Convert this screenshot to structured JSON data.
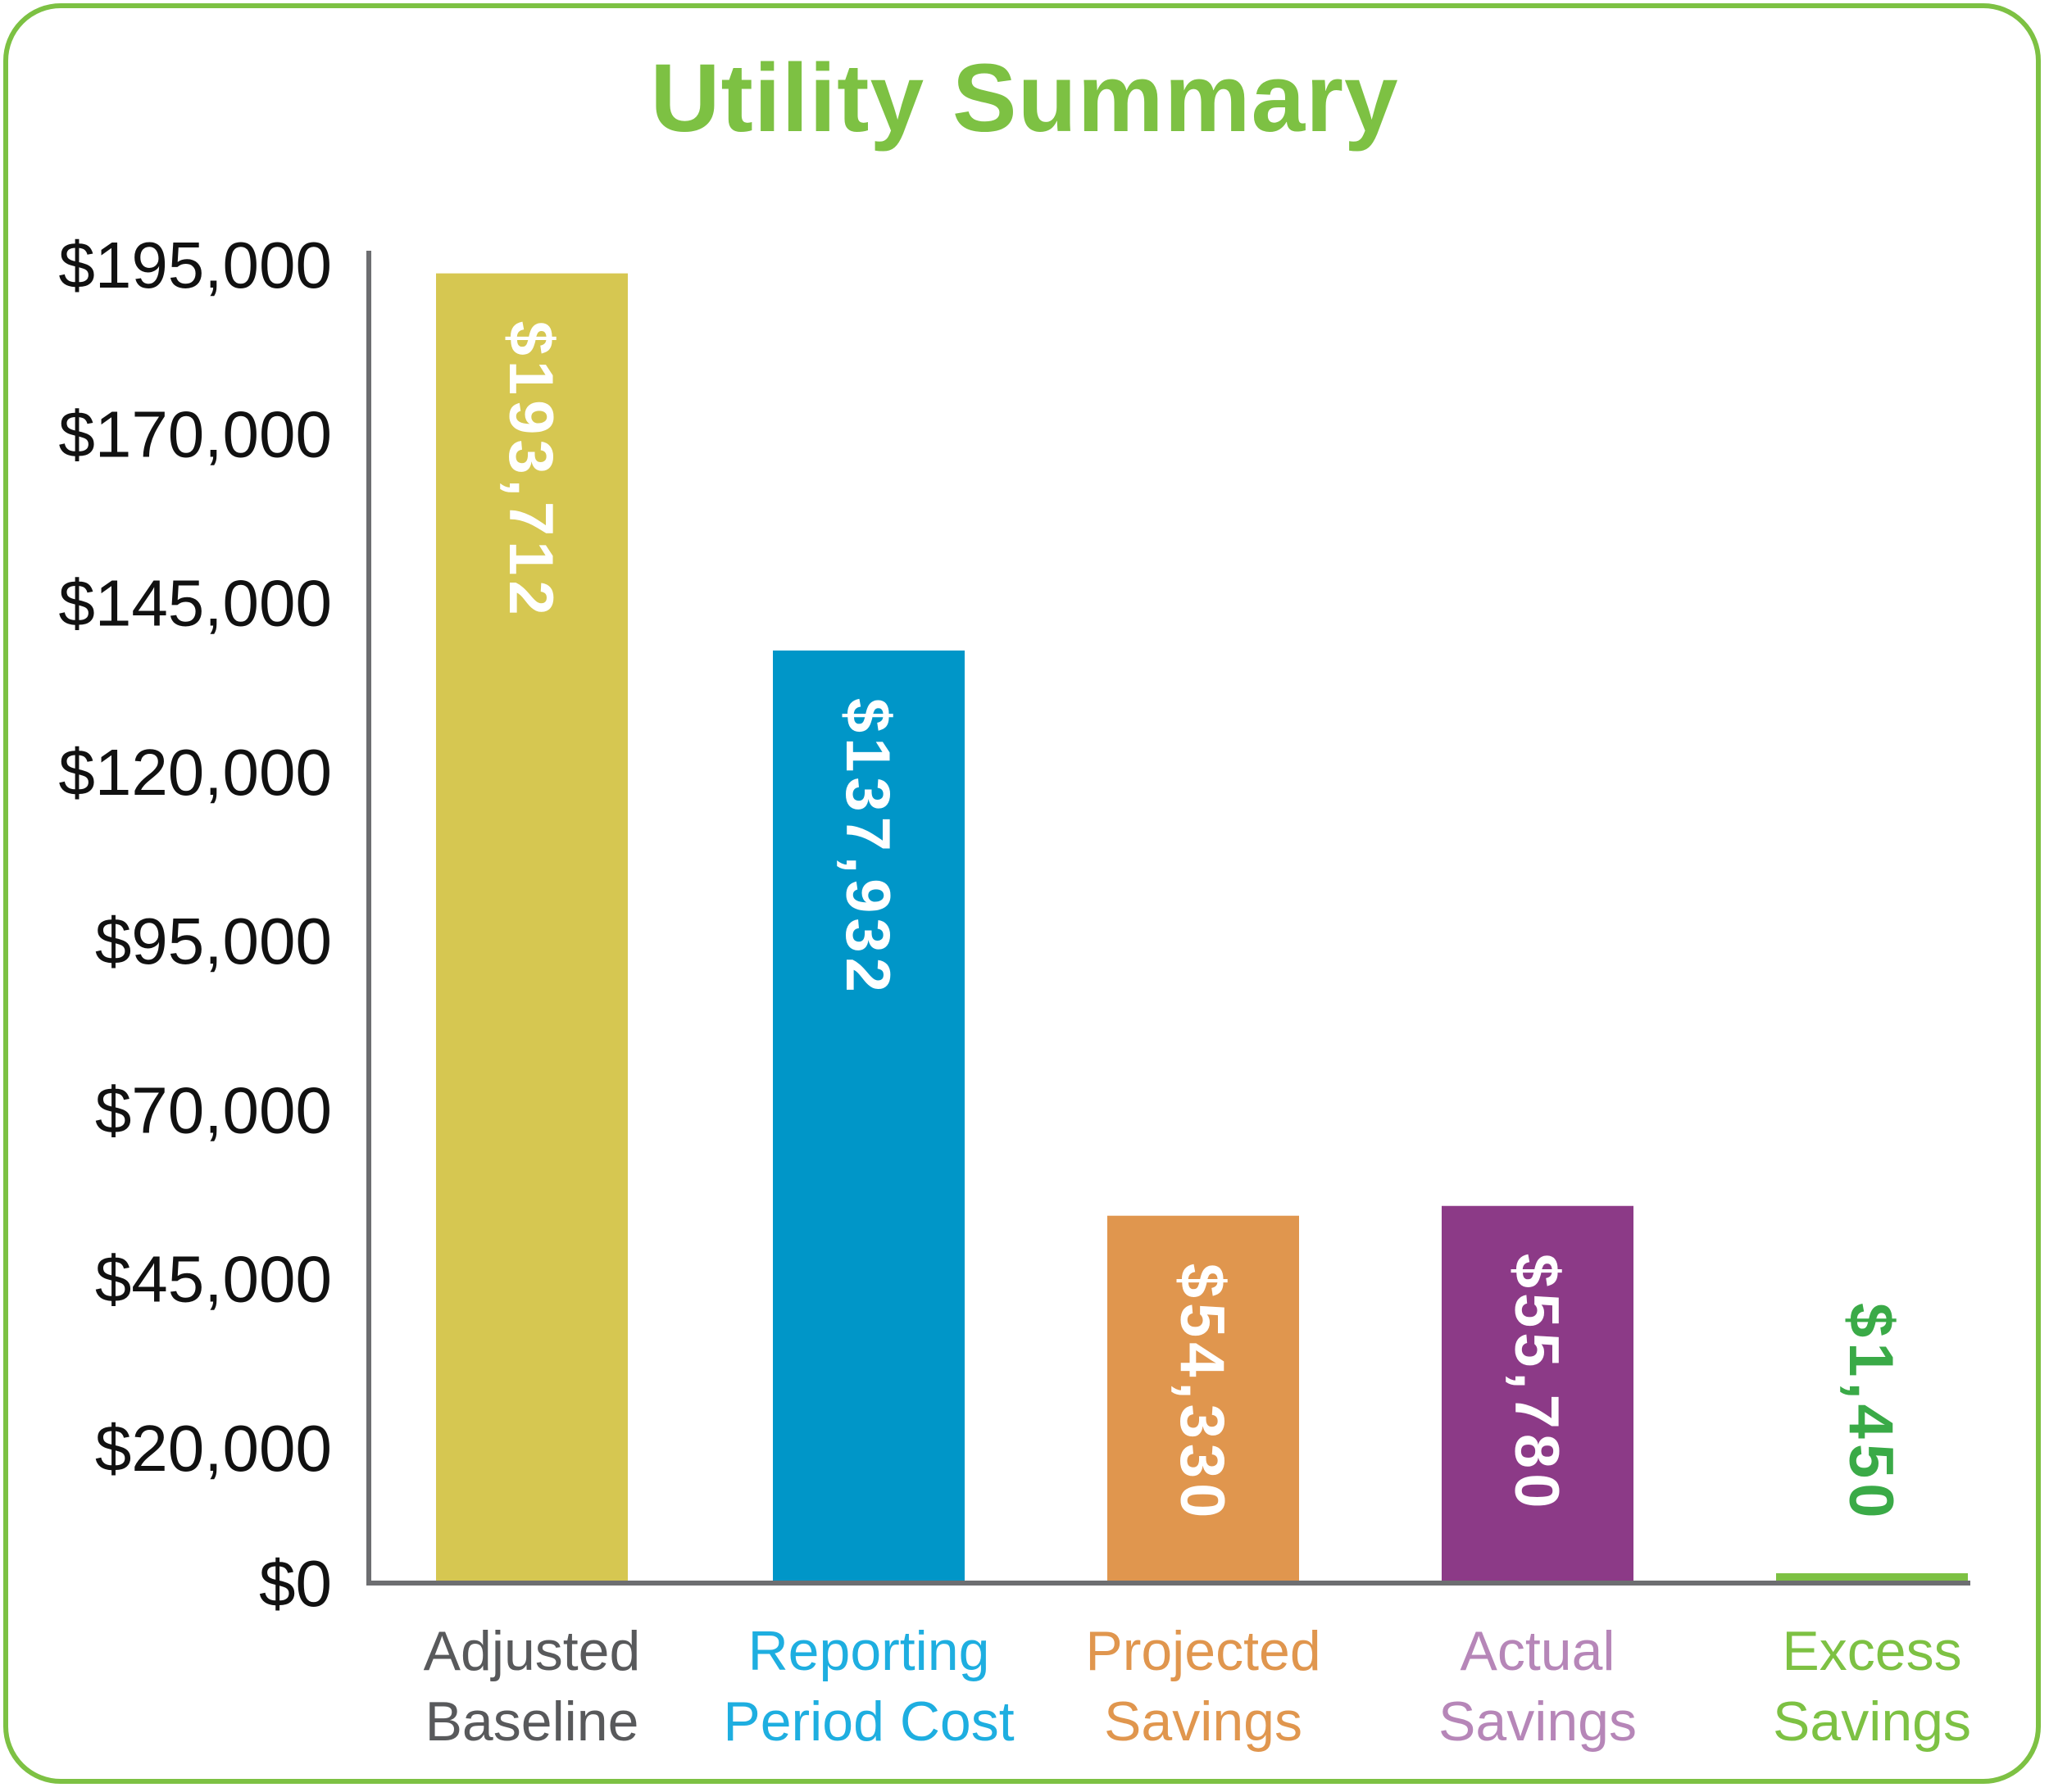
{
  "colors": {
    "border": "#7dc143",
    "title": "#7dc143",
    "axis": "#6d6e71"
  },
  "chart_data": {
    "type": "bar",
    "title": "Utility Summary",
    "xlabel": "",
    "ylabel": "",
    "ylim": [
      0,
      195000
    ],
    "y_ticks": [
      {
        "value": 195000,
        "label": "$195,000"
      },
      {
        "value": 170000,
        "label": "$170,000"
      },
      {
        "value": 145000,
        "label": "$145,000"
      },
      {
        "value": 120000,
        "label": "$120,000"
      },
      {
        "value": 95000,
        "label": "$95,000"
      },
      {
        "value": 70000,
        "label": "$70,000"
      },
      {
        "value": 45000,
        "label": "$45,000"
      },
      {
        "value": 20000,
        "label": "$20,000"
      },
      {
        "value": 0,
        "label": "$0"
      }
    ],
    "grid": false,
    "legend": "none",
    "bars": [
      {
        "category": [
          "Adjusted",
          "Baseline"
        ],
        "value": 193712,
        "value_label": "$193,712",
        "color": "#d6c751",
        "category_color": "#58595b",
        "label_color": "#ffffff",
        "label_inside": true
      },
      {
        "category": [
          "Reporting",
          "Period Cost"
        ],
        "value": 137932,
        "value_label": "$137,932",
        "color": "#0096c8",
        "category_color": "#1eaee0",
        "label_color": "#ffffff",
        "label_inside": true
      },
      {
        "category": [
          "Projected",
          "Savings"
        ],
        "value": 54330,
        "value_label": "$54,330",
        "color": "#e0964e",
        "category_color": "#e0964e",
        "label_color": "#ffffff",
        "label_inside": true
      },
      {
        "category": [
          "Actual",
          "Savings"
        ],
        "value": 55780,
        "value_label": "$55,780",
        "color": "#8c3a87",
        "category_color": "#b686b8",
        "label_color": "#ffffff",
        "label_inside": true
      },
      {
        "category": [
          "Excess",
          "Savings"
        ],
        "value": 1450,
        "value_label": "$1,450",
        "color": "#7dc143",
        "category_color": "#7dc143",
        "label_color": "#3aaa47",
        "label_inside": false
      }
    ]
  }
}
